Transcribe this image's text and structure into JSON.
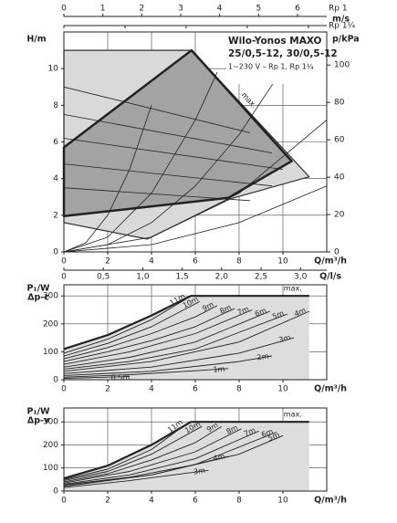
{
  "chart_data": [
    {
      "type": "line",
      "title": "Wilo-Yonos MAXO",
      "subtitle": "25/0,5-12, 30/0,5-12",
      "note": "1~230 V – Rp 1, Rp 1¼",
      "ylabel": "H/m",
      "y2label": "p/kPa",
      "xlabel": "Q/m³/h",
      "x2label": "Q/l/s",
      "x3label": "m/s",
      "x3_name": "Rp 1",
      "x4_name": "Rp 1¼",
      "xlim": [
        0,
        12
      ],
      "xticks": [
        0,
        2,
        4,
        6,
        8,
        10
      ],
      "ylim": [
        0,
        12
      ],
      "yticks": [
        0,
        2,
        4,
        6,
        8,
        10
      ],
      "y2lim": [
        0,
        117.7
      ],
      "y2ticks": [
        0,
        20,
        40,
        60,
        80,
        100
      ],
      "x2lim": [
        0,
        3.333
      ],
      "x2ticks": [
        0,
        {
          "value": 0.5,
          "label": "0,5"
        },
        {
          "value": 1.0,
          "label": "1,0"
        },
        {
          "value": 1.5,
          "label": "1,5"
        },
        {
          "value": 2.0,
          "label": "2,0"
        },
        {
          "value": 2.5,
          "label": "2,5"
        },
        {
          "value": 3.0,
          "label": "3,0"
        }
      ],
      "x3lim": [
        0,
        6.75
      ],
      "x3ticks": [
        0,
        1,
        2,
        3,
        4,
        5,
        6
      ],
      "x4lim": [
        0,
        4.3
      ],
      "x4ticks": [
        0,
        1,
        2,
        3,
        4
      ],
      "grid": true,
      "series": [
        {
          "x": [
            0,
            5.83,
            11.2,
            7.6,
            3.8,
            0
          ],
          "values": [
            11,
            11,
            4.1,
            2.9,
            0.7,
            1.6
          ],
          "color": "#333333",
          "fill": "#d9d9d9",
          "closed": true,
          "width": 1.2
        },
        {
          "name": "max.",
          "x": [
            0,
            5.83,
            10.4,
            7.5,
            0
          ],
          "values": [
            5.7,
            11,
            4.95,
            2.95,
            1.95
          ],
          "color": "#222222",
          "fill": "#a3a3a3",
          "closed": true,
          "width": 2.5
        },
        {
          "x": [
            0,
            8.5
          ],
          "values": [
            9.0,
            6.5
          ],
          "color": "#222222",
          "width": 0.8
        },
        {
          "x": [
            0,
            9.5
          ],
          "values": [
            7.5,
            5.4
          ],
          "color": "#222222",
          "width": 0.8
        },
        {
          "x": [
            0,
            10
          ],
          "values": [
            6.2,
            4.5
          ],
          "color": "#222222",
          "width": 0.8
        },
        {
          "x": [
            0,
            9.5
          ],
          "values": [
            4.8,
            3.6
          ],
          "color": "#222222",
          "width": 0.8
        },
        {
          "x": [
            0,
            8.5
          ],
          "values": [
            3.5,
            2.8
          ],
          "color": "#222222",
          "width": 0.8
        },
        {
          "x": [
            0,
            1,
            2,
            3,
            4
          ],
          "values": [
            0,
            0.5,
            2,
            4.5,
            8
          ],
          "color": "#222222",
          "width": 0.8
        },
        {
          "x": [
            0,
            2,
            4,
            6,
            7
          ],
          "values": [
            0,
            0.8,
            3.2,
            7.2,
            9.8
          ],
          "color": "#222222",
          "width": 0.8
        },
        {
          "x": [
            0,
            2,
            4,
            6,
            8,
            10
          ],
          "values": [
            0,
            0.4,
            1.6,
            3.6,
            6.4,
            10
          ],
          "color": "#222222",
          "width": 0.8
        },
        {
          "x": [
            0,
            4,
            8,
            12
          ],
          "values": [
            0,
            0.8,
            3.2,
            7.2
          ],
          "color": "#222222",
          "width": 0.8
        },
        {
          "x": [
            0,
            4,
            8,
            12
          ],
          "values": [
            0,
            0.4,
            1.6,
            3.6
          ],
          "color": "#222222",
          "width": 0.8
        }
      ]
    },
    {
      "type": "line",
      "ylabel": "P₁/W",
      "mode_label": "Δp-c",
      "xlabel": "Q/m³/h",
      "xlim": [
        0,
        12
      ],
      "xticks": [
        0,
        2,
        4,
        6,
        8,
        10
      ],
      "ylim": [
        0,
        340
      ],
      "yticks": [
        0,
        100,
        200,
        300
      ],
      "grid": true,
      "series": [
        {
          "name": "max.",
          "x": [
            0,
            2,
            4,
            5.8,
            11.2
          ],
          "values": [
            110,
            160,
            230,
            300,
            300
          ],
          "color": "#222222",
          "fill": "#dddddd",
          "width": 2.2
        },
        {
          "name": "11m",
          "x": [
            0,
            2,
            4,
            5.6
          ],
          "values": [
            95,
            145,
            215,
            290
          ],
          "color": "#222222",
          "width": 0.9
        },
        {
          "name": "10m",
          "x": [
            0,
            2,
            4,
            6.2
          ],
          "values": [
            85,
            130,
            190,
            280
          ],
          "color": "#222222",
          "width": 0.9
        },
        {
          "name": "9m",
          "x": [
            0,
            2,
            4,
            6,
            7.0
          ],
          "values": [
            75,
            115,
            165,
            225,
            265
          ],
          "color": "#222222",
          "width": 0.9
        },
        {
          "name": "8m",
          "x": [
            0,
            2,
            4,
            6,
            7.8
          ],
          "values": [
            65,
            100,
            140,
            190,
            255
          ],
          "color": "#222222",
          "width": 0.9
        },
        {
          "name": "7m",
          "x": [
            0,
            3,
            6,
            8.6
          ],
          "values": [
            55,
            100,
            165,
            250
          ],
          "color": "#222222",
          "width": 0.9
        },
        {
          "name": "6m",
          "x": [
            0,
            3,
            6,
            9.4
          ],
          "values": [
            45,
            80,
            135,
            245
          ],
          "color": "#222222",
          "width": 0.9
        },
        {
          "name": "5m",
          "x": [
            0,
            3,
            6,
            10.2
          ],
          "values": [
            38,
            65,
            110,
            235
          ],
          "color": "#222222",
          "width": 0.9
        },
        {
          "name": "4m",
          "x": [
            0,
            4,
            8,
            11.2
          ],
          "values": [
            30,
            65,
            135,
            245
          ],
          "color": "#222222",
          "width": 0.9
        },
        {
          "name": "3m",
          "x": [
            0,
            4,
            8,
            10.5
          ],
          "values": [
            22,
            45,
            95,
            150
          ],
          "color": "#222222",
          "width": 0.9
        },
        {
          "name": "2m",
          "x": [
            0,
            4,
            8,
            9.5
          ],
          "values": [
            15,
            30,
            65,
            85
          ],
          "color": "#222222",
          "width": 0.9
        },
        {
          "name": "1m",
          "x": [
            0,
            3,
            6,
            7.5
          ],
          "values": [
            9,
            18,
            32,
            40
          ],
          "color": "#222222",
          "width": 0.9
        },
        {
          "name": "0.5m",
          "x": [
            0,
            2,
            3
          ],
          "values": [
            5,
            9,
            11
          ],
          "color": "#222222",
          "width": 0.9
        }
      ]
    },
    {
      "type": "line",
      "ylabel": "P₁/W",
      "mode_label": "Δp-v",
      "xlabel": "Q/m³/h",
      "xlim": [
        0,
        12
      ],
      "xticks": [
        0,
        2,
        4,
        6,
        8,
        10
      ],
      "ylim": [
        0,
        360
      ],
      "yticks": [
        0,
        100,
        200,
        300
      ],
      "grid": true,
      "series": [
        {
          "name": "max.",
          "x": [
            0,
            2,
            4,
            5.8,
            11.2
          ],
          "values": [
            55,
            110,
            200,
            300,
            300
          ],
          "color": "#222222",
          "fill": "#dddddd",
          "width": 2.2
        },
        {
          "name": "11m",
          "x": [
            0,
            2,
            4,
            5.5
          ],
          "values": [
            50,
            95,
            180,
            285
          ],
          "color": "#222222",
          "width": 0.9
        },
        {
          "name": "10m",
          "x": [
            0,
            2,
            4,
            6.3
          ],
          "values": [
            45,
            85,
            160,
            280
          ],
          "color": "#222222",
          "width": 0.9
        },
        {
          "name": "9m",
          "x": [
            0,
            2,
            4,
            6,
            7.2
          ],
          "values": [
            40,
            75,
            135,
            210,
            280
          ],
          "color": "#222222",
          "width": 0.9
        },
        {
          "name": "8m",
          "x": [
            0,
            3,
            6,
            8.1
          ],
          "values": [
            35,
            85,
            170,
            270
          ],
          "color": "#222222",
          "width": 0.9
        },
        {
          "name": "7m",
          "x": [
            0,
            3,
            6,
            8.9
          ],
          "values": [
            30,
            70,
            140,
            260
          ],
          "color": "#222222",
          "width": 0.9
        },
        {
          "name": "6m",
          "x": [
            0,
            3,
            6,
            9.7
          ],
          "values": [
            27,
            60,
            115,
            255
          ],
          "color": "#222222",
          "width": 0.9
        },
        {
          "name": "5m",
          "x": [
            0,
            4,
            8,
            10
          ],
          "values": [
            22,
            70,
            160,
            240
          ],
          "color": "#222222",
          "width": 0.9
        },
        {
          "name": "4m",
          "x": [
            0,
            4,
            7.5
          ],
          "values": [
            20,
            70,
            150
          ],
          "color": "#222222",
          "width": 0.9
        },
        {
          "name": "3m",
          "x": [
            0,
            3,
            6.6
          ],
          "values": [
            15,
            45,
            90
          ],
          "color": "#222222",
          "width": 0.9
        }
      ]
    }
  ]
}
